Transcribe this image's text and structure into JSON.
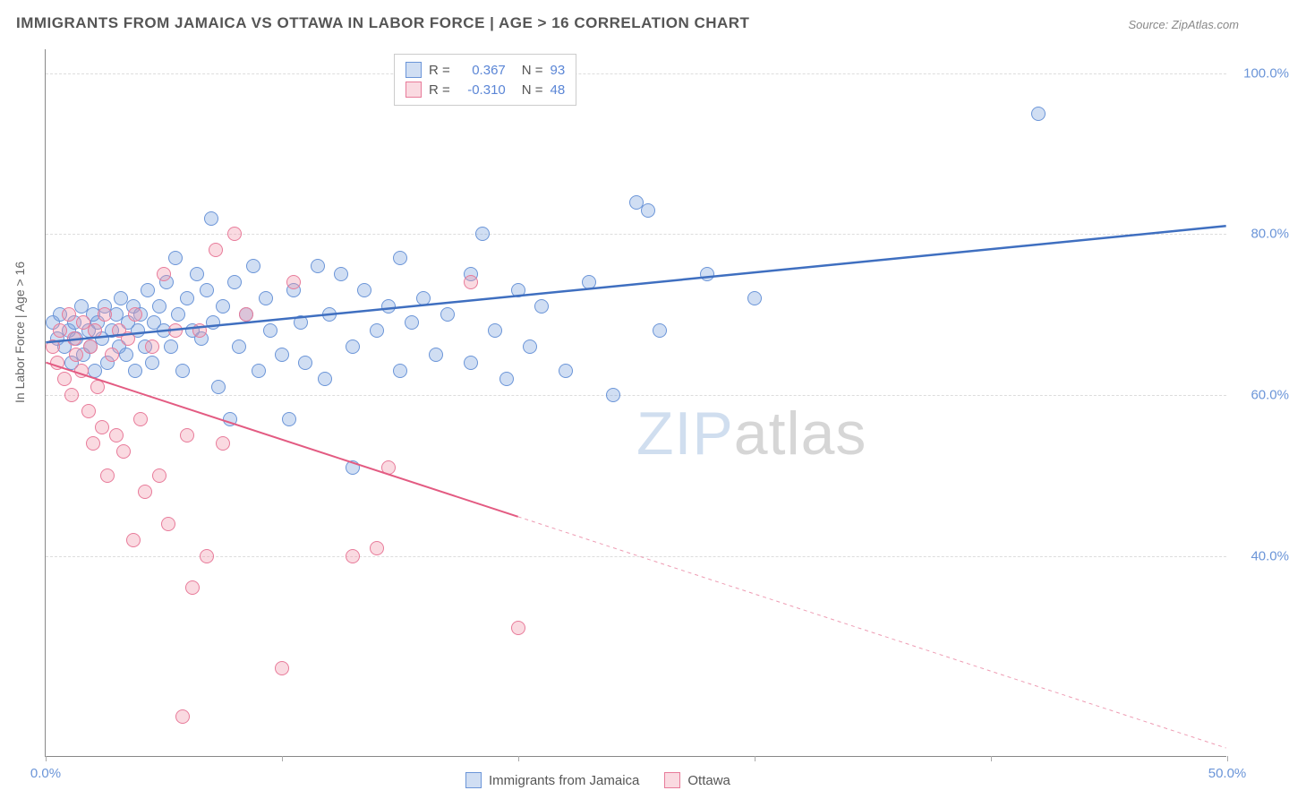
{
  "title": "IMMIGRANTS FROM JAMAICA VS OTTAWA IN LABOR FORCE | AGE > 16 CORRELATION CHART",
  "source_label": "Source: ZipAtlas.com",
  "y_axis_label": "In Labor Force | Age > 16",
  "watermark": {
    "part1": "ZIP",
    "part2": "atlas"
  },
  "chart": {
    "type": "scatter-with-trend",
    "background_color": "#ffffff",
    "grid_color": "#dddddd",
    "axis_color": "#888888",
    "tick_label_color": "#6b95d8",
    "tick_fontsize": 15,
    "xlim": [
      0,
      50
    ],
    "ylim": [
      15,
      103
    ],
    "x_ticks": [
      0,
      10,
      20,
      30,
      40,
      50
    ],
    "x_tick_labels": [
      "0.0%",
      "",
      "",
      "",
      "",
      "50.0%"
    ],
    "y_ticks": [
      40,
      60,
      80,
      100
    ],
    "y_tick_labels": [
      "40.0%",
      "60.0%",
      "80.0%",
      "100.0%"
    ],
    "marker_radius": 8,
    "marker_stroke_width": 1.5,
    "series": [
      {
        "name": "Immigrants from Jamaica",
        "fill_color": "rgba(120,160,220,0.35)",
        "stroke_color": "#6b95d8",
        "r_value": "0.367",
        "n_value": "93",
        "trend": {
          "x1": 0,
          "y1": 66.5,
          "x2": 50,
          "y2": 81.0,
          "color": "#3f6fc0",
          "width": 2.5,
          "dash": "none",
          "dash_from_x": null
        },
        "points": [
          [
            0.3,
            69
          ],
          [
            0.5,
            67
          ],
          [
            0.6,
            70
          ],
          [
            0.8,
            66
          ],
          [
            1.0,
            68
          ],
          [
            1.1,
            64
          ],
          [
            1.2,
            69
          ],
          [
            1.3,
            67
          ],
          [
            1.5,
            71
          ],
          [
            1.6,
            65
          ],
          [
            1.8,
            68
          ],
          [
            1.9,
            66
          ],
          [
            2.0,
            70
          ],
          [
            2.1,
            63
          ],
          [
            2.2,
            69
          ],
          [
            2.4,
            67
          ],
          [
            2.5,
            71
          ],
          [
            2.6,
            64
          ],
          [
            2.8,
            68
          ],
          [
            3.0,
            70
          ],
          [
            3.1,
            66
          ],
          [
            3.2,
            72
          ],
          [
            3.4,
            65
          ],
          [
            3.5,
            69
          ],
          [
            3.7,
            71
          ],
          [
            3.8,
            63
          ],
          [
            3.9,
            68
          ],
          [
            4.0,
            70
          ],
          [
            4.2,
            66
          ],
          [
            4.3,
            73
          ],
          [
            4.5,
            64
          ],
          [
            4.6,
            69
          ],
          [
            4.8,
            71
          ],
          [
            5.0,
            68
          ],
          [
            5.1,
            74
          ],
          [
            5.3,
            66
          ],
          [
            5.5,
            77
          ],
          [
            5.6,
            70
          ],
          [
            5.8,
            63
          ],
          [
            6.0,
            72
          ],
          [
            6.2,
            68
          ],
          [
            6.4,
            75
          ],
          [
            6.6,
            67
          ],
          [
            6.8,
            73
          ],
          [
            7.0,
            82
          ],
          [
            7.1,
            69
          ],
          [
            7.3,
            61
          ],
          [
            7.5,
            71
          ],
          [
            7.8,
            57
          ],
          [
            8.0,
            74
          ],
          [
            8.2,
            66
          ],
          [
            8.5,
            70
          ],
          [
            8.8,
            76
          ],
          [
            9.0,
            63
          ],
          [
            9.3,
            72
          ],
          [
            9.5,
            68
          ],
          [
            10.0,
            65
          ],
          [
            10.3,
            57
          ],
          [
            10.5,
            73
          ],
          [
            10.8,
            69
          ],
          [
            11.0,
            64
          ],
          [
            11.5,
            76
          ],
          [
            11.8,
            62
          ],
          [
            12.0,
            70
          ],
          [
            12.5,
            75
          ],
          [
            13.0,
            66
          ],
          [
            13.0,
            51
          ],
          [
            13.5,
            73
          ],
          [
            14.0,
            68
          ],
          [
            14.5,
            71
          ],
          [
            15.0,
            77
          ],
          [
            15.0,
            63
          ],
          [
            15.5,
            69
          ],
          [
            16.0,
            72
          ],
          [
            16.5,
            65
          ],
          [
            17.0,
            70
          ],
          [
            18.0,
            75
          ],
          [
            18.0,
            64
          ],
          [
            18.5,
            80
          ],
          [
            19.0,
            68
          ],
          [
            19.5,
            62
          ],
          [
            20.0,
            73
          ],
          [
            20.5,
            66
          ],
          [
            21.0,
            71
          ],
          [
            22.0,
            63
          ],
          [
            23.0,
            74
          ],
          [
            24.0,
            60
          ],
          [
            25.0,
            84
          ],
          [
            26.0,
            68
          ],
          [
            28.0,
            75
          ],
          [
            30.0,
            72
          ],
          [
            42.0,
            95
          ],
          [
            25.5,
            83
          ]
        ]
      },
      {
        "name": "Ottawa",
        "fill_color": "rgba(240,150,170,0.35)",
        "stroke_color": "#e87b9a",
        "r_value": "-0.310",
        "n_value": "48",
        "trend": {
          "x1": 0,
          "y1": 64.0,
          "x2": 50,
          "y2": 16.0,
          "color": "#e35b82",
          "width": 2,
          "dash": "4,4",
          "dash_from_x": 20
        },
        "points": [
          [
            0.3,
            66
          ],
          [
            0.5,
            64
          ],
          [
            0.6,
            68
          ],
          [
            0.8,
            62
          ],
          [
            1.0,
            70
          ],
          [
            1.1,
            60
          ],
          [
            1.2,
            67
          ],
          [
            1.3,
            65
          ],
          [
            1.5,
            63
          ],
          [
            1.6,
            69
          ],
          [
            1.8,
            58
          ],
          [
            1.9,
            66
          ],
          [
            2.0,
            54
          ],
          [
            2.1,
            68
          ],
          [
            2.2,
            61
          ],
          [
            2.4,
            56
          ],
          [
            2.5,
            70
          ],
          [
            2.6,
            50
          ],
          [
            2.8,
            65
          ],
          [
            3.0,
            55
          ],
          [
            3.1,
            68
          ],
          [
            3.3,
            53
          ],
          [
            3.5,
            67
          ],
          [
            3.7,
            42
          ],
          [
            3.8,
            70
          ],
          [
            4.0,
            57
          ],
          [
            4.2,
            48
          ],
          [
            4.5,
            66
          ],
          [
            4.8,
            50
          ],
          [
            5.0,
            75
          ],
          [
            5.2,
            44
          ],
          [
            5.5,
            68
          ],
          [
            5.8,
            20
          ],
          [
            6.0,
            55
          ],
          [
            6.2,
            36
          ],
          [
            6.5,
            68
          ],
          [
            6.8,
            40
          ],
          [
            7.2,
            78
          ],
          [
            7.5,
            54
          ],
          [
            8.0,
            80
          ],
          [
            8.5,
            70
          ],
          [
            10.0,
            26
          ],
          [
            10.5,
            74
          ],
          [
            13.0,
            40
          ],
          [
            14.0,
            41
          ],
          [
            14.5,
            51
          ],
          [
            18.0,
            74
          ],
          [
            20.0,
            31
          ]
        ]
      }
    ]
  },
  "legend_top": {
    "r_label": "R =",
    "n_label": "N ="
  },
  "legend_bottom_items": [
    "Immigrants from Jamaica",
    "Ottawa"
  ]
}
